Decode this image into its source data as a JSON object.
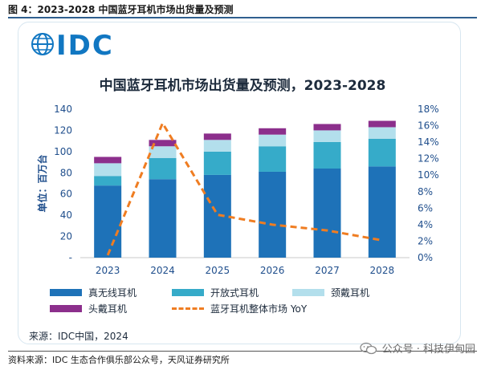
{
  "figure_title": "图 4：2023-2028 中国蓝牙耳机市场出货量及预测",
  "logo_text": "IDC",
  "source_note": "来源：IDC中国，2024",
  "credit": "资料来源：IDC 生态合作俱乐部公众号，天风证券研究所",
  "watermark": "公众号 · 科技伊甸园",
  "colors": {
    "tws": "#1e72b8",
    "open": "#36abc9",
    "neckband": "#b3dfec",
    "headphone": "#8c2f8c",
    "yoy": "#ef7d22",
    "axis_text": "#1f4e8c"
  },
  "chart_data": {
    "type": "bar",
    "stacked": true,
    "title": "中国蓝牙耳机市场出货量及预测，2023-2028",
    "ylabel": "单位：百万台",
    "categories": [
      "2023",
      "2024",
      "2025",
      "2026",
      "2027",
      "2028"
    ],
    "ylim": [
      0,
      140
    ],
    "yticks": [
      "-",
      "20",
      "40",
      "60",
      "80",
      "100",
      "120",
      "140"
    ],
    "y2lim": [
      0,
      18
    ],
    "y2ticks": [
      "0%",
      "2%",
      "4%",
      "6%",
      "8%",
      "10%",
      "12%",
      "14%",
      "16%",
      "18%"
    ],
    "series": [
      {
        "name": "真无线耳机",
        "values": [
          68,
          74,
          78,
          81,
          84,
          86
        ]
      },
      {
        "name": "开放式耳机",
        "values": [
          9,
          20,
          22,
          24,
          25,
          26
        ]
      },
      {
        "name": "颈戴耳机",
        "values": [
          12,
          11,
          11,
          11,
          11,
          11
        ]
      },
      {
        "name": "头戴耳机",
        "values": [
          6,
          6,
          6,
          6,
          6,
          6
        ]
      }
    ],
    "line_series": {
      "name": "蓝牙耳机整体市场 YoY",
      "axis": "right",
      "values": [
        0.3,
        16.3,
        5.2,
        4.0,
        3.3,
        2.1
      ]
    },
    "grid": false,
    "legend_position": "bottom"
  }
}
